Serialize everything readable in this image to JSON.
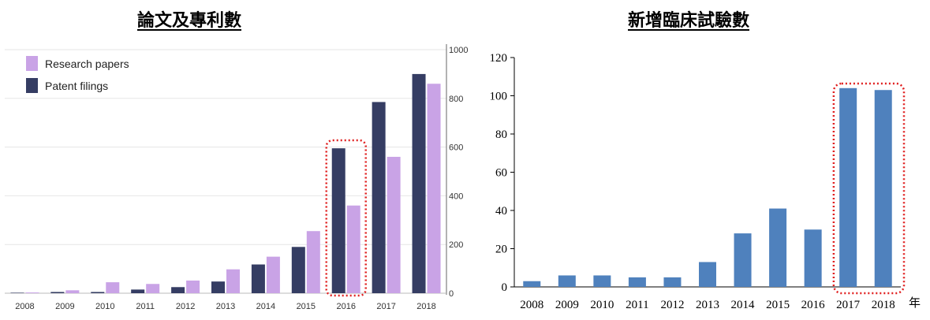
{
  "charts": {
    "left_title": "論文及專利數",
    "right_title": "新增臨床試驗數"
  },
  "colors": {
    "research_papers": "#c9a3e6",
    "patent_filings": "#353d63",
    "trials_bar": "#4f81bd",
    "highlight_box": "#e02020"
  },
  "chart_data": [
    {
      "type": "bar",
      "title": "論文及專利數",
      "categories": [
        "2008",
        "2009",
        "2010",
        "2011",
        "2012",
        "2013",
        "2014",
        "2015",
        "2016",
        "2017",
        "2018"
      ],
      "series": [
        {
          "name": "Research papers",
          "values": [
            3,
            12,
            45,
            38,
            52,
            98,
            150,
            255,
            360,
            560,
            860
          ]
        },
        {
          "name": "Patent filings",
          "values": [
            2,
            5,
            5,
            15,
            25,
            48,
            118,
            190,
            595,
            785,
            900
          ]
        }
      ],
      "ylim": [
        0,
        1000
      ],
      "yticks": [
        0,
        200,
        400,
        600,
        800,
        1000
      ],
      "yaxis_side": "right",
      "grid": true,
      "legend": "top-left",
      "highlight": [
        "2016"
      ]
    },
    {
      "type": "bar",
      "title": "新增臨床試驗數",
      "categories": [
        "2008",
        "2009",
        "2010",
        "2011",
        "2012",
        "2013",
        "2014",
        "2015",
        "2016",
        "2017",
        "2018"
      ],
      "values": [
        3,
        6,
        6,
        5,
        5,
        13,
        28,
        41,
        30,
        104,
        103
      ],
      "ylim": [
        0,
        120
      ],
      "yticks": [
        0,
        20,
        40,
        60,
        80,
        100,
        120
      ],
      "x_unit": "年",
      "grid": false,
      "highlight": [
        "2017",
        "2018"
      ]
    }
  ]
}
